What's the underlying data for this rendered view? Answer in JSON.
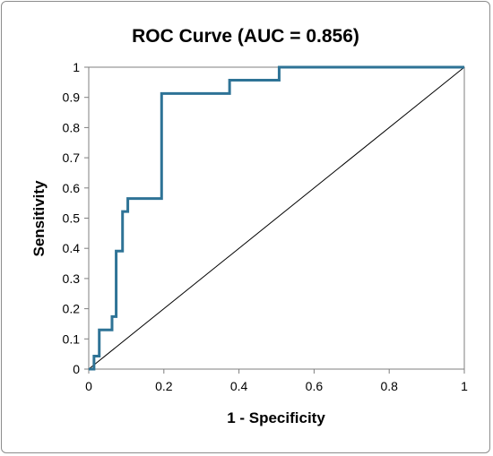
{
  "chart_data": {
    "type": "line",
    "title": "ROC Curve (AUC = 0.856)",
    "xlabel": "1 - Specificity",
    "ylabel": "Sensitivity",
    "xlim": [
      0,
      1
    ],
    "ylim": [
      0,
      1
    ],
    "x_ticks": [
      "0",
      "0.2",
      "0.4",
      "0.6",
      "0.8",
      "1"
    ],
    "y_ticks": [
      "0",
      "0.1",
      "0.2",
      "0.3",
      "0.4",
      "0.5",
      "0.6",
      "0.7",
      "0.8",
      "0.9",
      "1"
    ],
    "grid": false,
    "legend": "none",
    "series": [
      {
        "color": "#2e7396",
        "x": [
          0,
          0.014,
          0.014,
          0.028,
          0.028,
          0.062,
          0.062,
          0.073,
          0.073,
          0.09,
          0.09,
          0.104,
          0.104,
          0.194,
          0.194,
          0.375,
          0.375,
          0.507,
          0.507,
          1
        ],
        "y": [
          0,
          0,
          0.043,
          0.043,
          0.13,
          0.13,
          0.174,
          0.174,
          0.391,
          0.391,
          0.522,
          0.522,
          0.565,
          0.565,
          0.913,
          0.913,
          0.957,
          0.957,
          1,
          1
        ]
      },
      {
        "color": "#000000",
        "x": [
          0,
          1
        ],
        "y": [
          0,
          1
        ]
      }
    ]
  }
}
